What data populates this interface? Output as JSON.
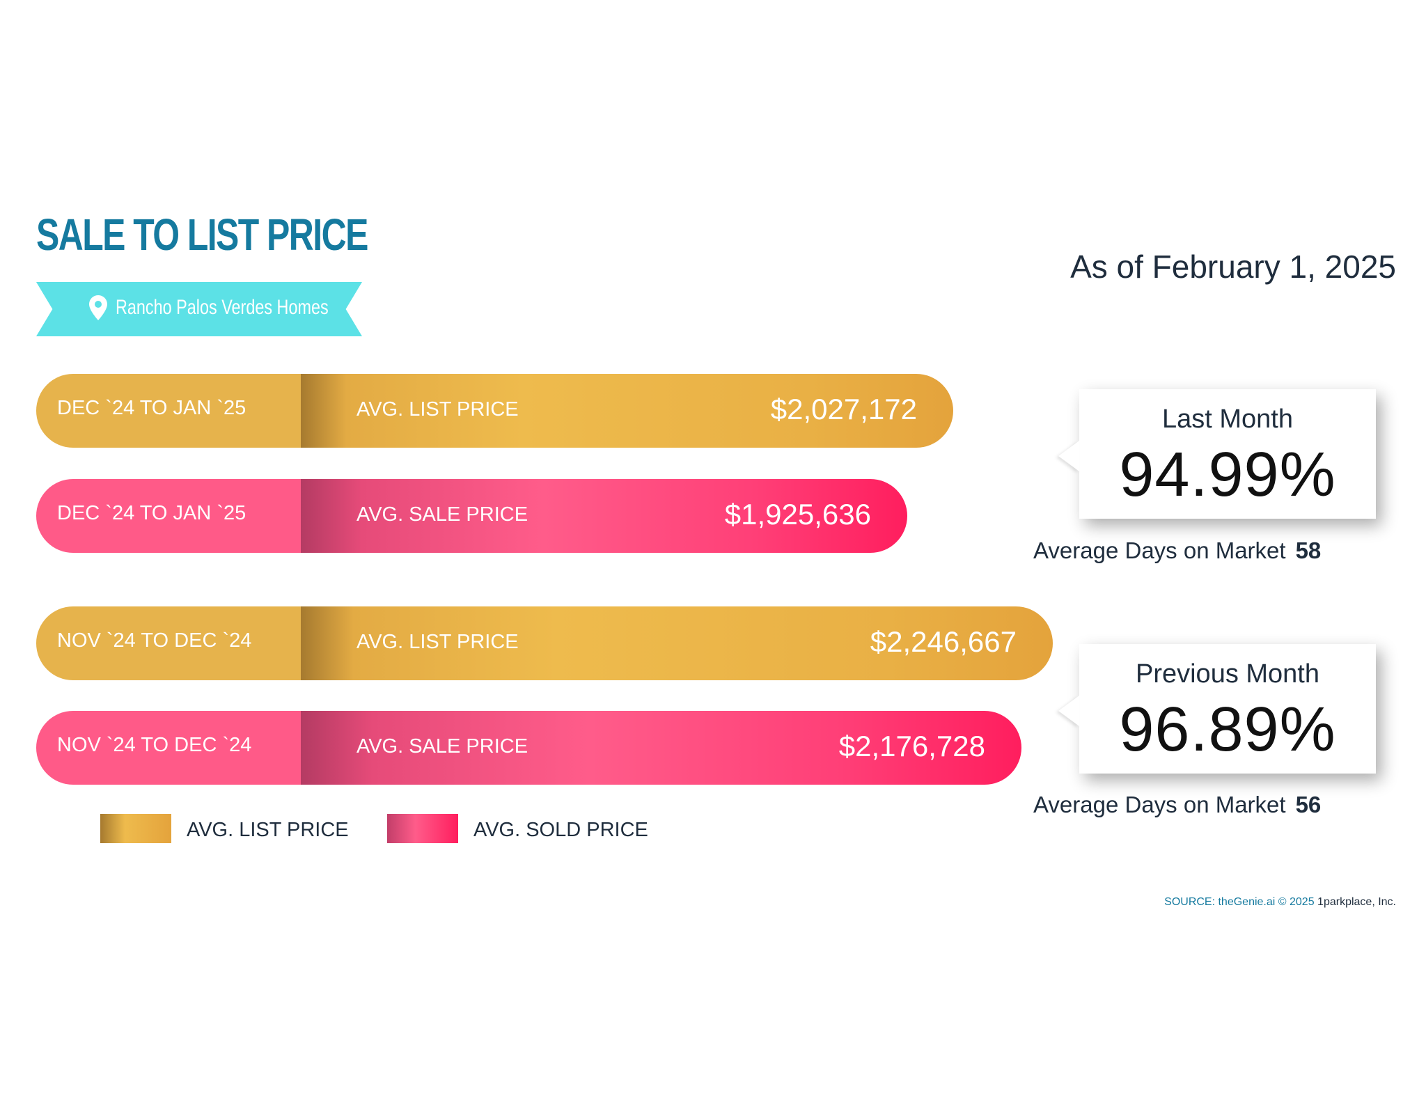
{
  "header": {
    "title": "SALE TO LIST PRICE",
    "location": "Rancho Palos Verdes Homes",
    "as_of": "As of February 1, 2025"
  },
  "chart_data": {
    "type": "bar",
    "orientation": "horizontal",
    "title": "SALE TO LIST PRICE",
    "categories": [
      "DEC `24 TO JAN `25",
      "NOV `24 TO DEC `24"
    ],
    "series": [
      {
        "name": "AVG. LIST PRICE",
        "values": [
          2027172,
          2246667
        ]
      },
      {
        "name": "AVG. SOLD PRICE",
        "values": [
          1925636,
          2176728
        ]
      }
    ],
    "bars": [
      {
        "period": "DEC `24 TO JAN `25",
        "label": "AVG. LIST PRICE",
        "value": 2027172,
        "display": "$2,027,172",
        "kind": "list"
      },
      {
        "period": "DEC `24 TO JAN `25",
        "label": "AVG. SALE PRICE",
        "value": 1925636,
        "display": "$1,925,636",
        "kind": "sale"
      },
      {
        "period": "NOV `24 TO DEC `24",
        "label": "AVG. LIST PRICE",
        "value": 2246667,
        "display": "$2,246,667",
        "kind": "list"
      },
      {
        "period": "NOV `24 TO DEC `24",
        "label": "AVG. SALE PRICE",
        "value": 2176728,
        "display": "$2,176,728",
        "kind": "sale"
      }
    ],
    "legend": [
      {
        "label": "AVG. LIST PRICE",
        "kind": "list"
      },
      {
        "label": "AVG. SOLD PRICE",
        "kind": "sale"
      }
    ]
  },
  "cards": [
    {
      "title": "Last Month",
      "percent": "94.99%",
      "dom_label": "Average Days on Market",
      "dom_value": "58"
    },
    {
      "title": "Previous Month",
      "percent": "96.89%",
      "dom_label": "Average Days on Market",
      "dom_value": "56"
    }
  ],
  "footer": {
    "source": "SOURCE: theGenie.ai © 2025",
    "company": "1parkplace, Inc."
  },
  "colors": {
    "title": "#157a9f",
    "ribbon": "#5ce1e6",
    "list_bar": "#eebb4d",
    "sale_bar": "#ff5c8a"
  }
}
